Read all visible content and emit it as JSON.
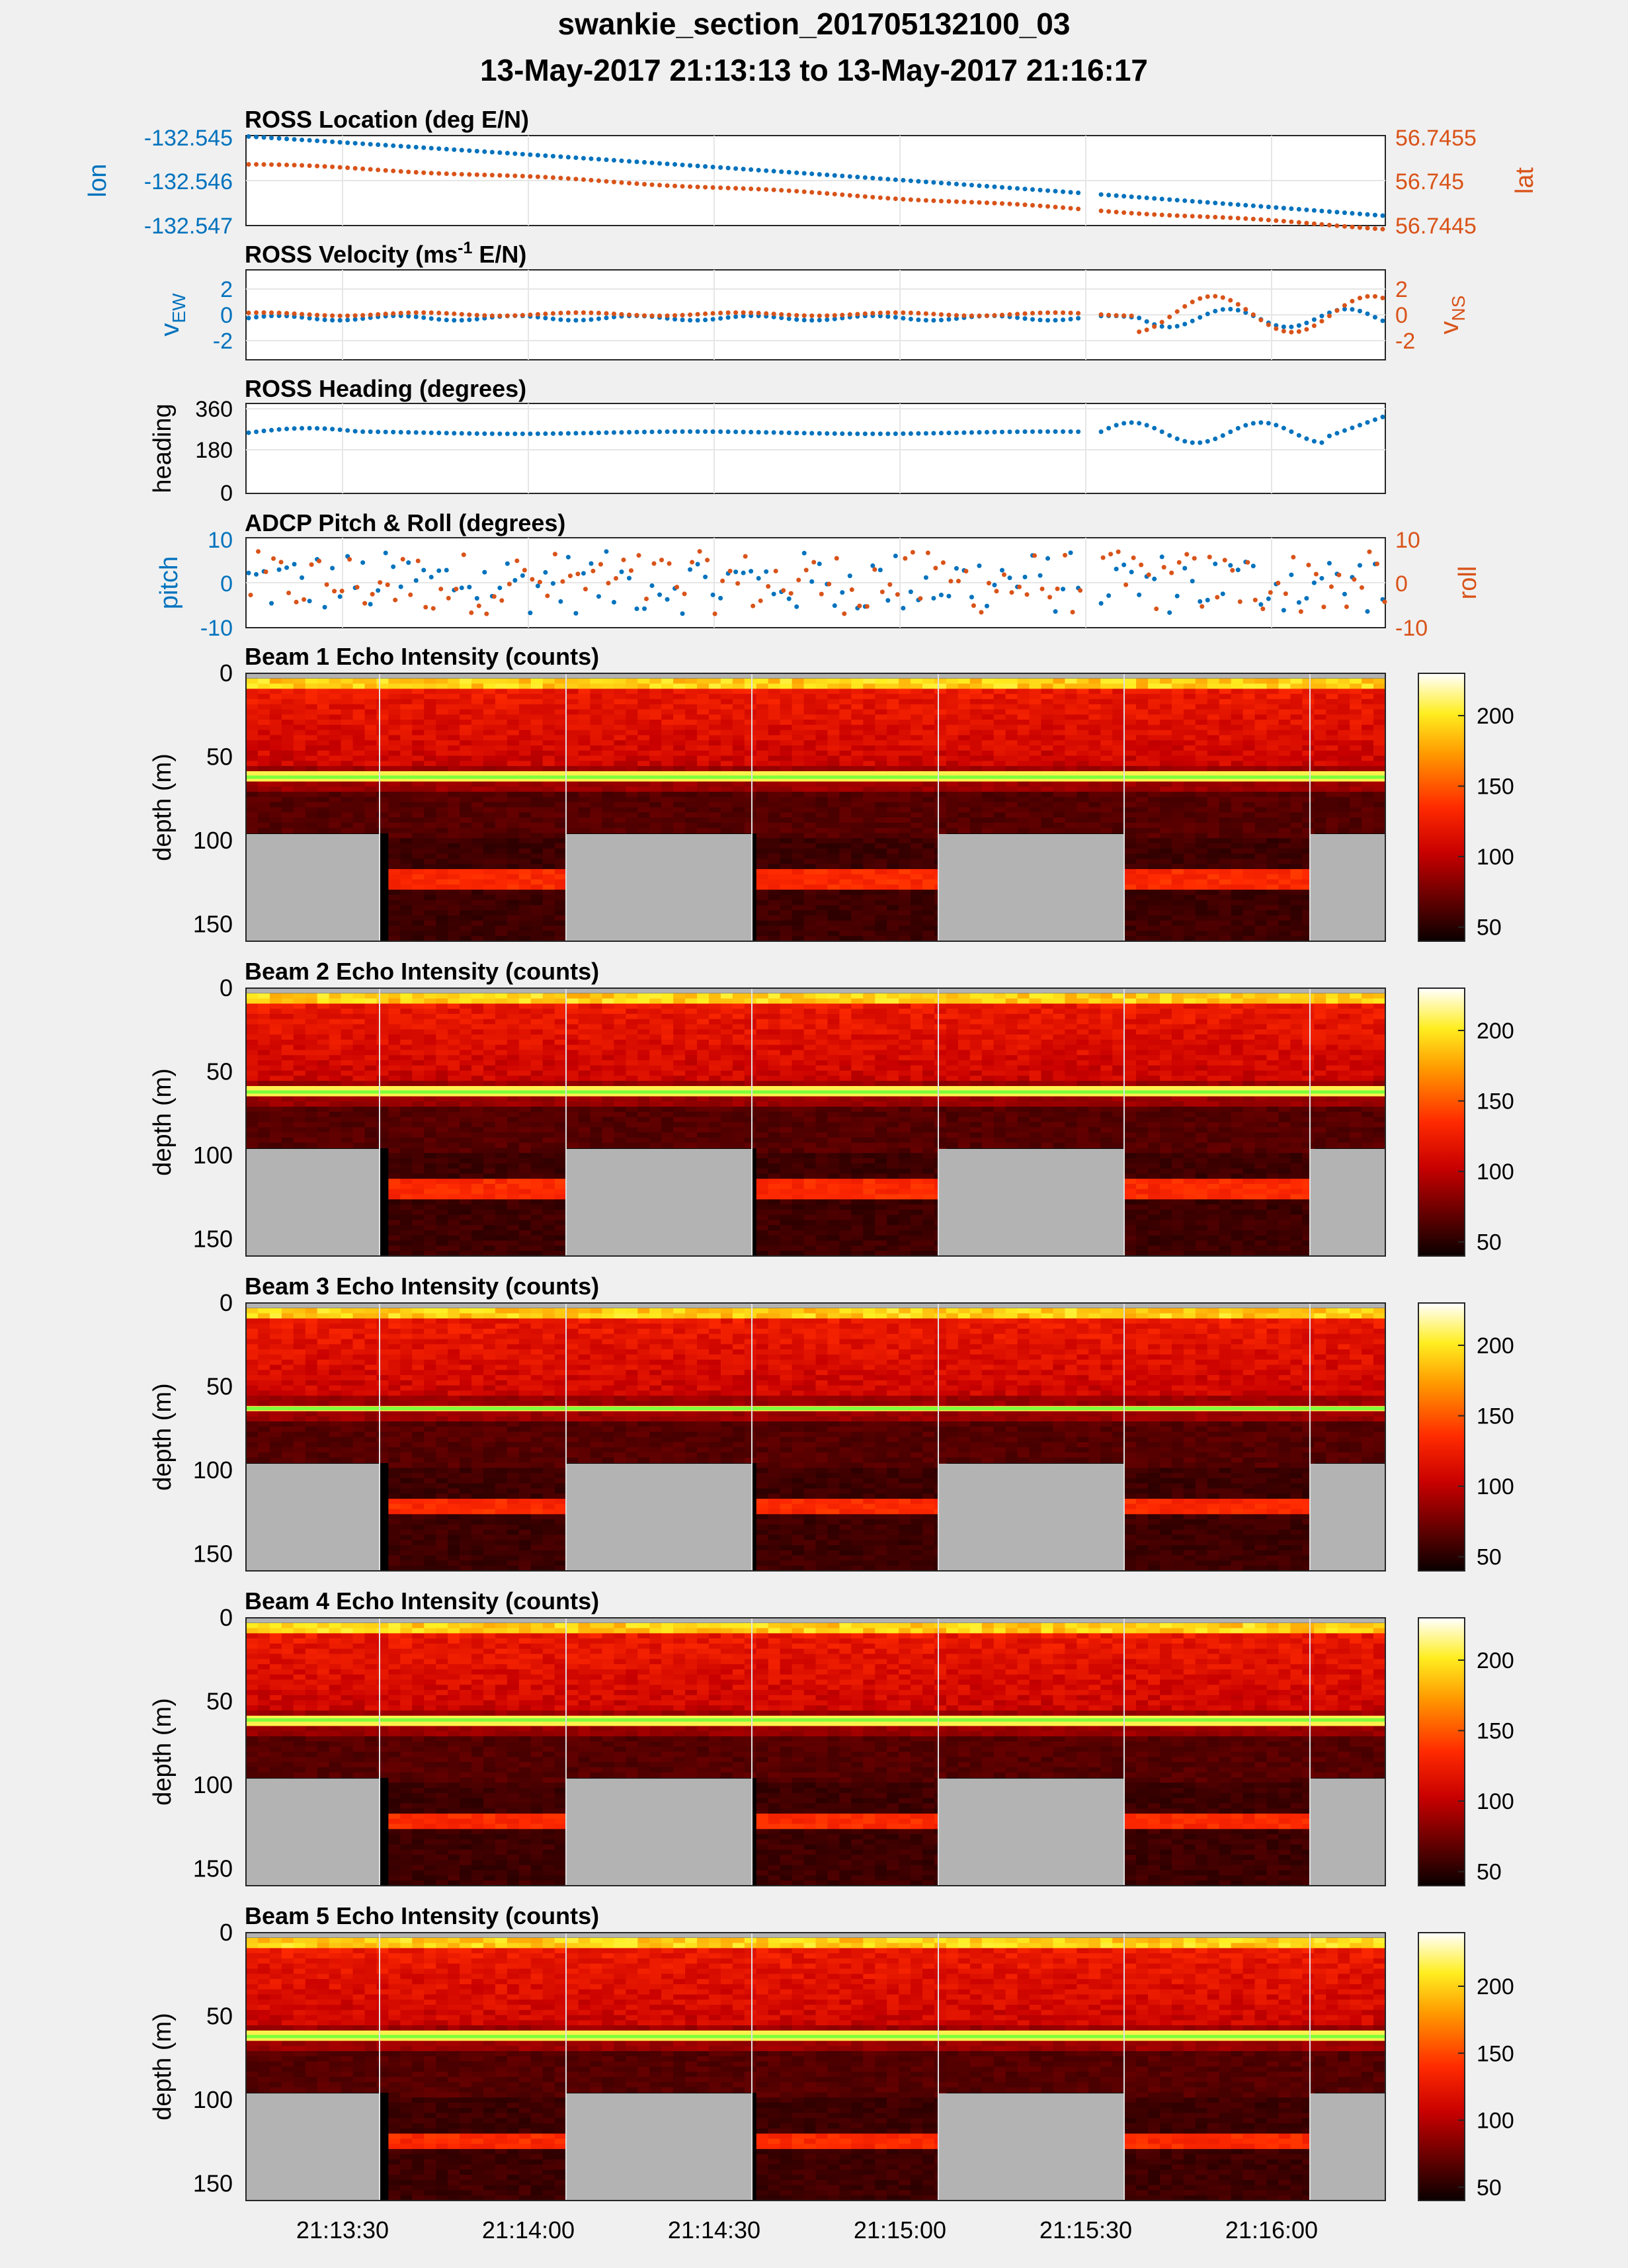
{
  "figure": {
    "title_line1": "swankie_section_201705132100_03",
    "title_line2": "13-May-2017 21:13:13 to 13-May-2017 21:16:17"
  },
  "colors": {
    "blue": "#0072bd",
    "orange": "#d95319",
    "grid": "#e6e6e6",
    "masked": "#b3b3b3"
  },
  "chart_data": [
    {
      "type": "scatter",
      "title": "ROSS Location (deg E/N)",
      "ylabel_left": "lon",
      "ylabel_right": "lat",
      "left_ticks": [
        "-132.545",
        "-132.546",
        "-132.547"
      ],
      "right_ticks": [
        "56.7455",
        "56.745",
        "56.7445"
      ],
      "left_range": [
        -132.547,
        -132.545
      ],
      "right_range": [
        56.7445,
        56.7455
      ],
      "series": [
        {
          "axis": "left",
          "color": "blue",
          "start": -132.54502,
          "end": -132.54678
        },
        {
          "axis": "right",
          "color": "orange",
          "start": 56.74518,
          "end": 56.74447
        }
      ]
    },
    {
      "type": "scatter",
      "title": "ROSS Velocity (ms-1 E/N)",
      "ylabel_left": "vEW",
      "ylabel_right": "vNS",
      "left_ticks": [
        "2",
        "0",
        "-2"
      ],
      "right_ticks": [
        "2",
        "0",
        "-2"
      ],
      "range": [
        -3.5,
        3.5
      ]
    },
    {
      "type": "scatter",
      "title": "ROSS Heading (degrees)",
      "ylabel_left": "heading",
      "left_ticks": [
        "360",
        "180",
        "0"
      ],
      "range": [
        0,
        400
      ]
    },
    {
      "type": "scatter",
      "title": "ADCP Pitch & Roll (degrees)",
      "ylabel_left": "pitch",
      "ylabel_right": "roll",
      "left_ticks": [
        "10",
        "0",
        "-10"
      ],
      "right_ticks": [
        "10",
        "0",
        "-10"
      ],
      "range": [
        -10,
        10
      ]
    },
    {
      "type": "heatmap",
      "title": "Beam 1 Echo Intensity (counts)",
      "ylabel": "depth (m)",
      "y_ticks": [
        "0",
        "50",
        "100",
        "150"
      ],
      "colorbar_ticks": [
        "200",
        "150",
        "100",
        "50"
      ],
      "depth_range": [
        0,
        160
      ],
      "color_range": [
        40,
        230
      ],
      "bottom_band_depth": 62,
      "second_echo_depth": 123
    },
    {
      "type": "heatmap",
      "title": "Beam 2 Echo Intensity (counts)",
      "ylabel": "depth (m)",
      "y_ticks": [
        "0",
        "50",
        "100",
        "150"
      ],
      "colorbar_ticks": [
        "200",
        "150",
        "100",
        "50"
      ],
      "depth_range": [
        0,
        160
      ],
      "color_range": [
        40,
        230
      ],
      "bottom_band_depth": 62,
      "second_echo_depth": 120
    },
    {
      "type": "heatmap",
      "title": "Beam 3 Echo Intensity (counts)",
      "ylabel": "depth (m)",
      "y_ticks": [
        "0",
        "50",
        "100",
        "150"
      ],
      "colorbar_ticks": [
        "200",
        "150",
        "100",
        "50"
      ],
      "depth_range": [
        0,
        160
      ],
      "color_range": [
        40,
        230
      ],
      "bottom_band_depth": 63,
      "second_echo_depth": 122
    },
    {
      "type": "heatmap",
      "title": "Beam 4 Echo Intensity (counts)",
      "ylabel": "depth (m)",
      "y_ticks": [
        "0",
        "50",
        "100",
        "150"
      ],
      "colorbar_ticks": [
        "200",
        "150",
        "100",
        "50"
      ],
      "depth_range": [
        0,
        160
      ],
      "color_range": [
        40,
        230
      ],
      "bottom_band_depth": 61,
      "second_echo_depth": 121
    },
    {
      "type": "heatmap",
      "title": "Beam 5 Echo Intensity (counts)",
      "ylabel": "depth (m)",
      "y_ticks": [
        "0",
        "50",
        "100",
        "150"
      ],
      "colorbar_ticks": [
        "200",
        "150",
        "100",
        "50"
      ],
      "depth_range": [
        0,
        160
      ],
      "color_range": [
        40,
        240
      ],
      "bottom_band_depth": 62,
      "second_echo_depth": 125
    }
  ],
  "x_axis": {
    "ticks": [
      "21:13:30",
      "21:14:00",
      "21:14:30",
      "21:15:00",
      "21:15:30",
      "21:16:00"
    ]
  }
}
